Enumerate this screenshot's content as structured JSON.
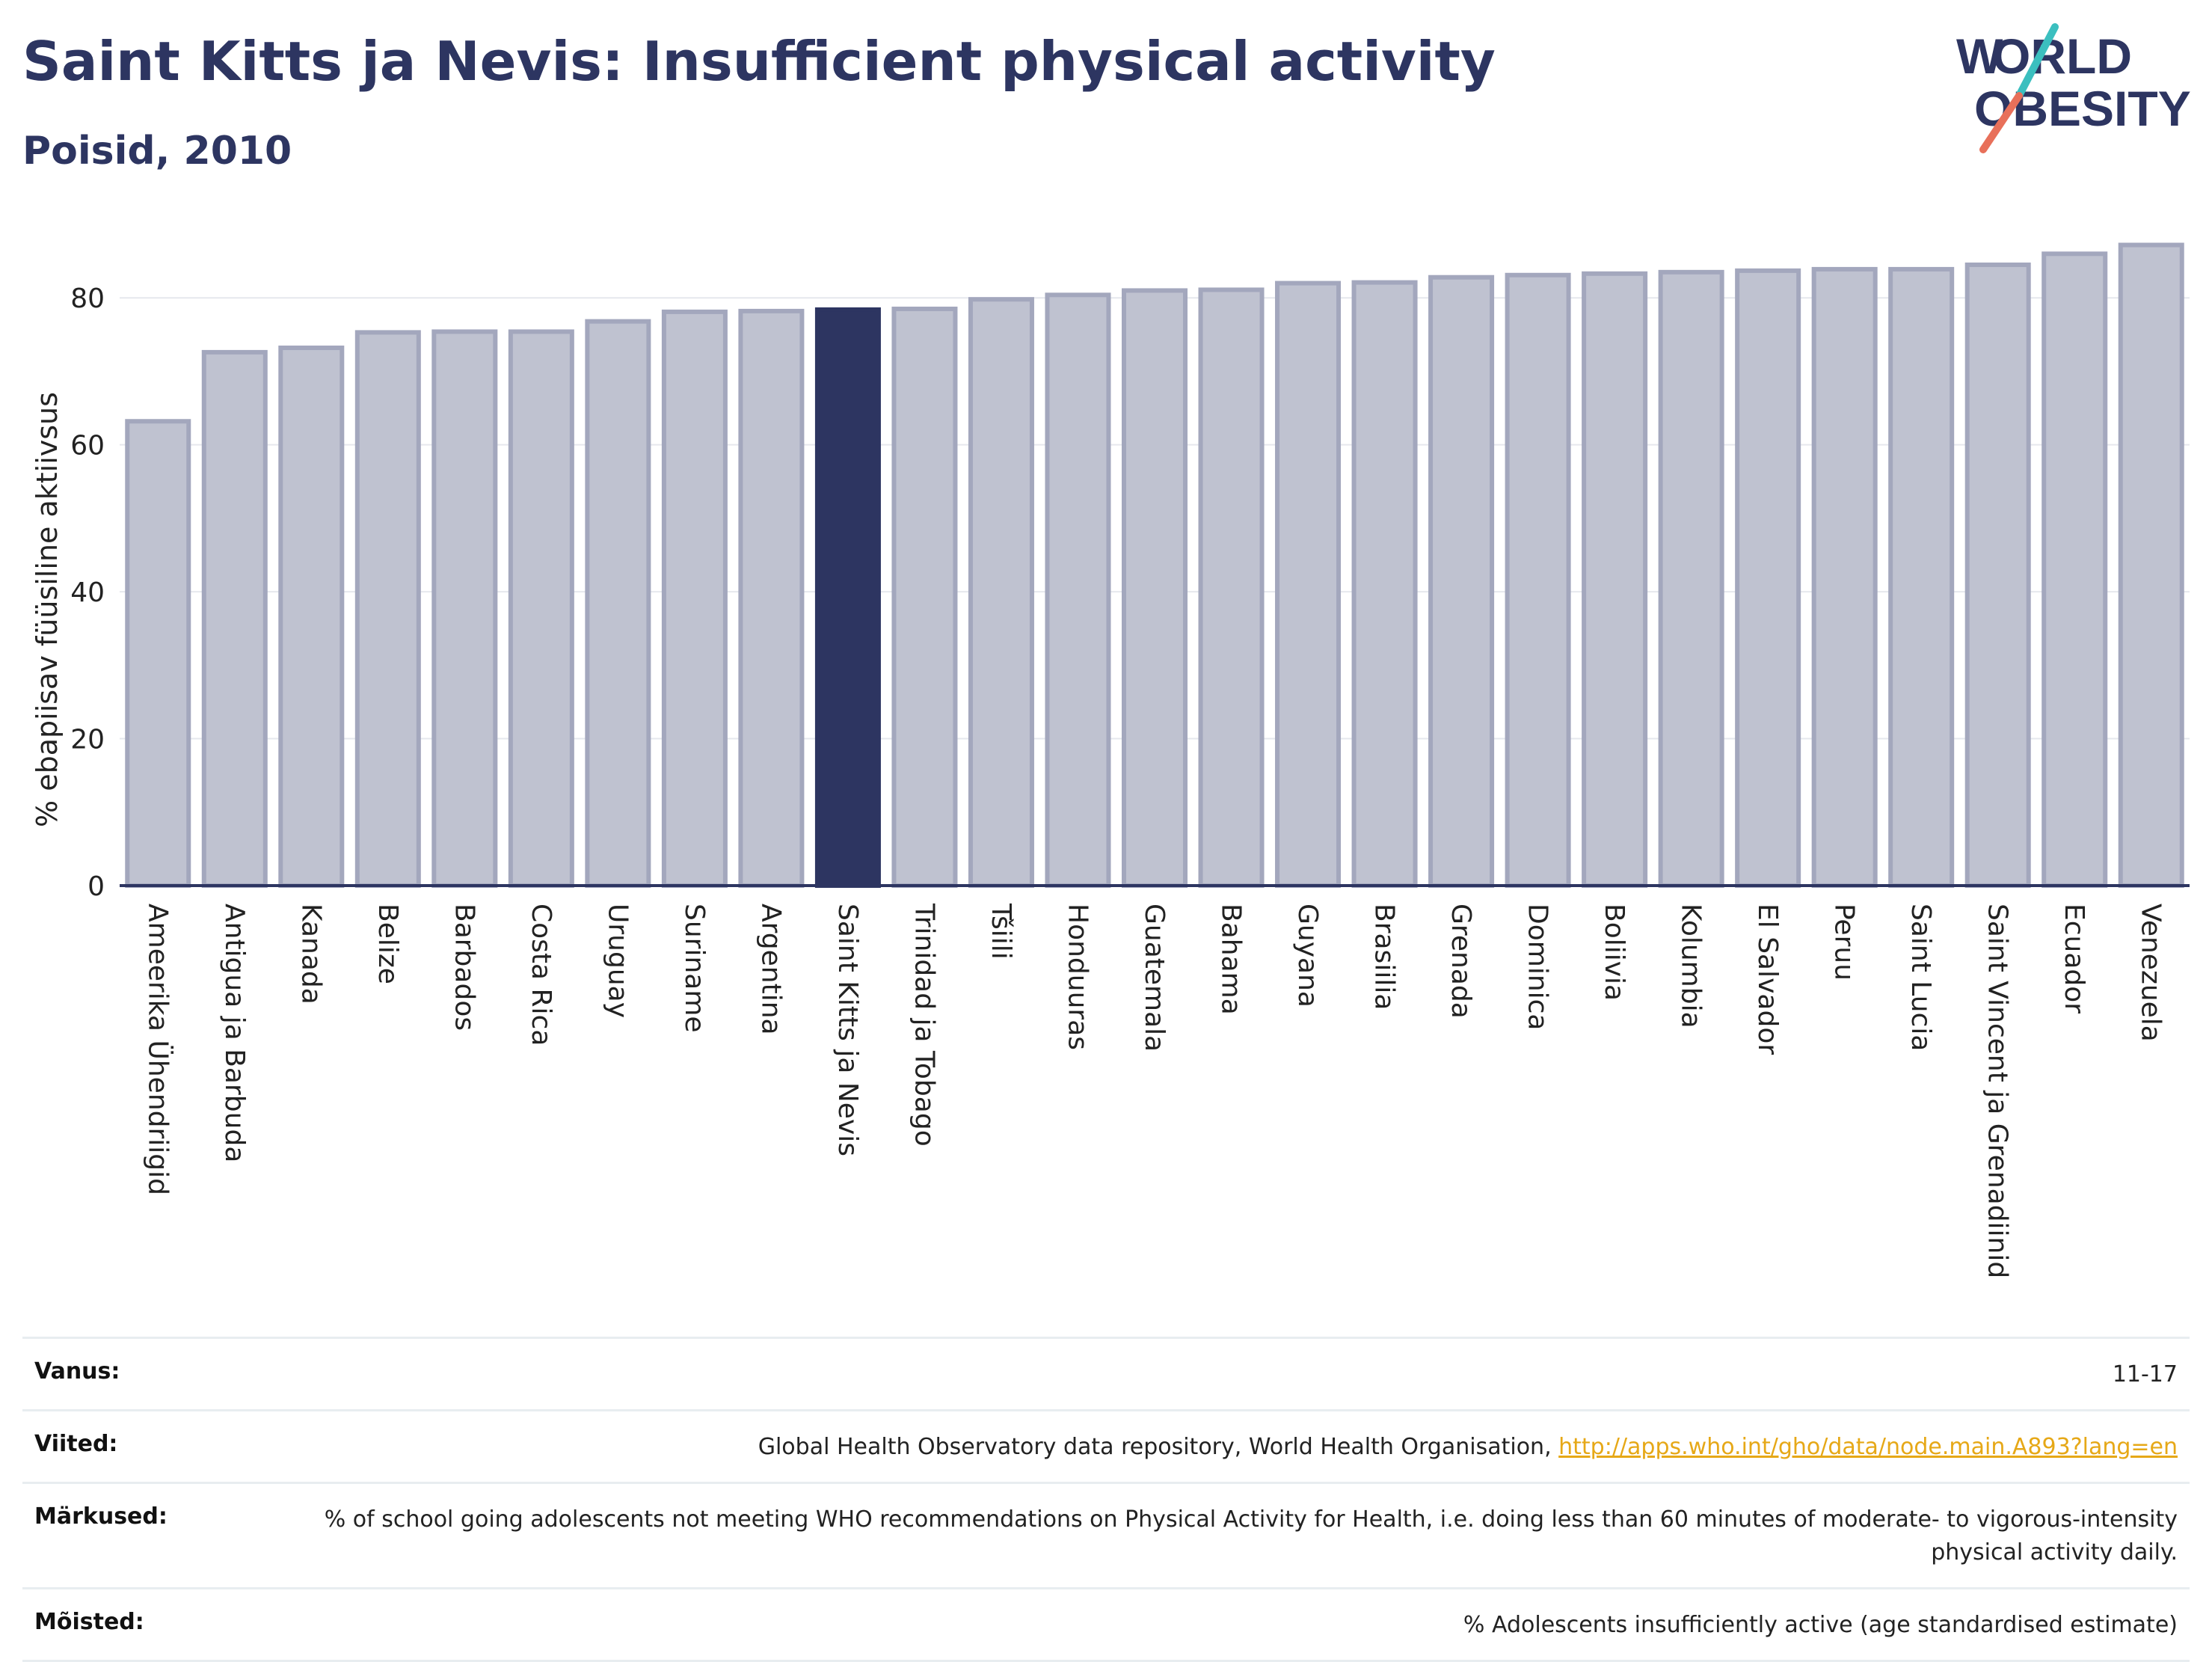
{
  "header": {
    "title": "Saint Kitts ja Nevis: Insufficient physical activity",
    "subtitle": "Poisid, 2010"
  },
  "logo": {
    "line1": "WORLD",
    "line2": "OBESITY",
    "accent_teal": "#3bbfbf",
    "accent_coral": "#e8705a"
  },
  "chart_data": {
    "type": "bar",
    "title": "Saint Kitts ja Nevis: Insufficient physical activity",
    "subtitle": "Poisid, 2010",
    "ylabel": "% ebapiisav füüsiline aktiivsus",
    "xlabel": "",
    "ylim": [
      0,
      90
    ],
    "yticks": [
      0,
      20,
      40,
      60,
      80
    ],
    "grid": true,
    "highlight": "Saint Kitts ja Nevis",
    "colors": {
      "bar": "#bfc2d0",
      "bar_edge": "#a3a7bd",
      "highlight": "#2d3561",
      "axis": "#2d3561"
    },
    "categories": [
      "Ameerika Ühendriigid",
      "Antigua ja Barbuda",
      "Kanada",
      "Belize",
      "Barbados",
      "Costa Rica",
      "Uruguay",
      "Suriname",
      "Argentina",
      "Saint Kitts ja Nevis",
      "Trinidad ja Tobago",
      "Tšiili",
      "Honduuras",
      "Guatemala",
      "Bahama",
      "Guyana",
      "Brasiilia",
      "Grenada",
      "Dominica",
      "Boliivia",
      "Kolumbia",
      "El Salvador",
      "Peruu",
      "Saint Lucia",
      "Saint Vincent ja Grenadiinid",
      "Ecuador",
      "Venezuela"
    ],
    "values": [
      63.2,
      72.6,
      73.2,
      75.3,
      75.4,
      75.4,
      76.8,
      78.1,
      78.2,
      78.4,
      78.5,
      79.8,
      80.4,
      81.0,
      81.1,
      82.0,
      82.1,
      82.8,
      83.1,
      83.3,
      83.5,
      83.7,
      83.9,
      83.9,
      84.5,
      86.0,
      87.2
    ]
  },
  "notes": {
    "age_label": "Vanus:",
    "age_value": "11-17",
    "refs_label": "Viited:",
    "refs_text": "Global Health Observatory data repository, World Health Organisation, ",
    "refs_link": "http://apps.who.int/gho/data/node.main.A893?lang=en",
    "remarks_label": "Märkused:",
    "remarks_value": "% of school going adolescents not meeting WHO recommendations on Physical Activity for Health, i.e. doing less than 60 minutes of moderate- to vigorous-intensity physical activity daily.",
    "defs_label": "Mõisted:",
    "defs_value": "% Adolescents insufficiently active (age standardised estimate)"
  }
}
